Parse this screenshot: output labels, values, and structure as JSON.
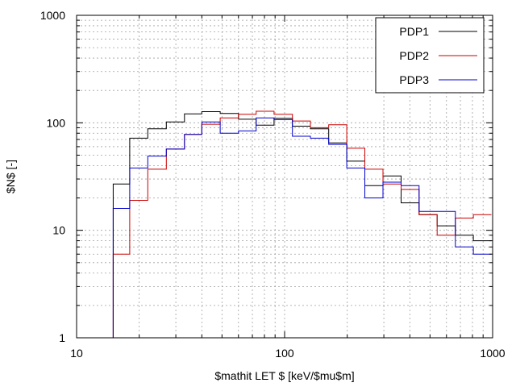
{
  "chart_data": {
    "type": "line",
    "title": "",
    "xlabel": "$mathit LET $ [keV/$mu$m]",
    "ylabel": "$N$ [-]",
    "xscale": "log",
    "yscale": "log",
    "xlim": [
      10,
      1000
    ],
    "ylim": [
      1,
      1000
    ],
    "grid": true,
    "legend_position": "top-right",
    "x_ticks": [
      {
        "value": 10,
        "label": "10"
      },
      {
        "value": 100,
        "label": "100"
      },
      {
        "value": 1000,
        "label": "1000"
      }
    ],
    "y_ticks": [
      {
        "value": 1,
        "label": "1"
      },
      {
        "value": 10,
        "label": "10"
      },
      {
        "value": 100,
        "label": "100"
      },
      {
        "value": 1000,
        "label": "1000"
      }
    ],
    "bin_edges": [
      15,
      18,
      22,
      27,
      33,
      40,
      49,
      60,
      73,
      89,
      109,
      133,
      163,
      199,
      243,
      297,
      363,
      443,
      541,
      662,
      808,
      987
    ],
    "series": [
      {
        "name": "PDP1",
        "color": "#000000",
        "values": [
          27,
          72,
          88,
          102,
          121,
          127,
          122,
          108,
          95,
          110,
          93,
          88,
          65,
          44,
          26,
          32,
          18,
          14,
          11,
          9,
          8
        ]
      },
      {
        "name": "PDP2",
        "color": "#cc0000",
        "values": [
          6,
          19,
          37,
          57,
          78,
          97,
          111,
          120,
          128,
          120,
          104,
          90,
          96,
          58,
          37,
          27,
          24,
          14,
          9,
          13,
          14
        ]
      },
      {
        "name": "PDP3",
        "color": "#0000cc",
        "values": [
          16,
          38,
          49,
          57,
          78,
          102,
          80,
          84,
          111,
          107,
          75,
          72,
          63,
          38,
          20,
          28,
          26,
          15,
          15,
          7,
          6
        ]
      }
    ]
  }
}
